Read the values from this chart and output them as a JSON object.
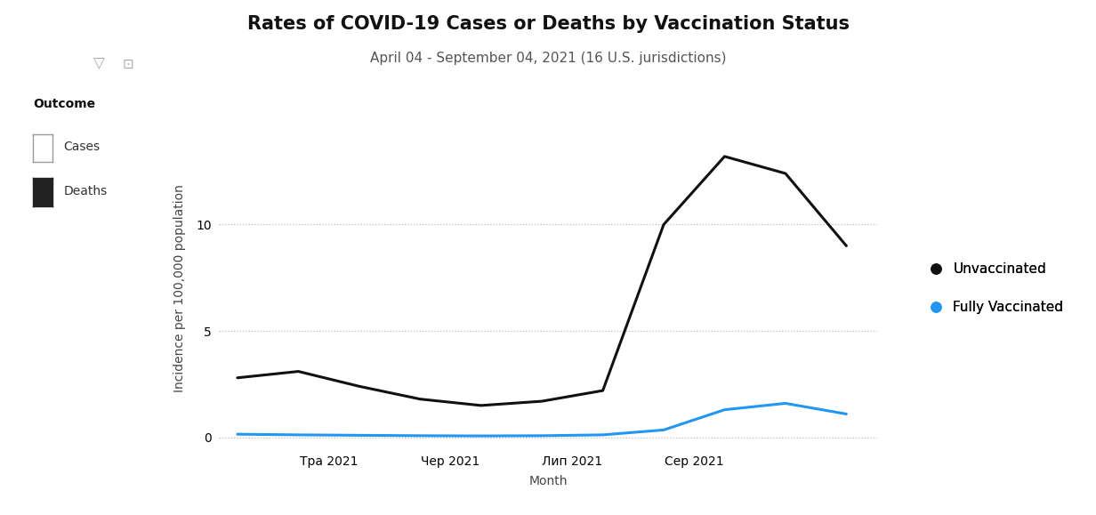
{
  "title": "Rates of COVID-19 Cases or Deaths by Vaccination Status",
  "subtitle": "April 04 - September 04, 2021 (16 U.S. jurisdictions)",
  "xlabel": "Month",
  "ylabel": "Incidence per 100,000 population",
  "x_tick_labels": [
    "Тра 2021",
    "Чер 2021",
    "Лип 2021",
    "Сер 2021"
  ],
  "x_values": [
    0,
    1,
    2,
    3,
    4,
    5,
    6,
    7,
    8,
    9,
    10
  ],
  "unvaccinated_y": [
    2.8,
    3.1,
    2.4,
    1.8,
    1.5,
    1.7,
    2.2,
    10.0,
    13.2,
    12.4,
    9.0
  ],
  "vaccinated_y": [
    0.15,
    0.12,
    0.1,
    0.08,
    0.07,
    0.08,
    0.12,
    0.35,
    1.3,
    1.6,
    1.1
  ],
  "unvaccinated_color": "#111111",
  "vaccinated_color": "#2196F3",
  "ylim": [
    -0.5,
    14.5
  ],
  "yticks": [
    0,
    5,
    10
  ],
  "background_color": "#ffffff",
  "grid_color": "#bbbbbb",
  "title_fontsize": 15,
  "subtitle_fontsize": 11,
  "axis_label_fontsize": 10,
  "tick_fontsize": 10,
  "legend_fontsize": 11,
  "line_width": 2.2,
  "x_tick_positions": [
    1.5,
    3.5,
    5.5,
    7.5
  ],
  "outcome_legend_title": "Outcome",
  "outcome_cases_label": "Cases",
  "outcome_deaths_label": "Deaths",
  "unvaccinated_label": "Unvaccinated",
  "vaccinated_label": "Fully Vaccinated"
}
